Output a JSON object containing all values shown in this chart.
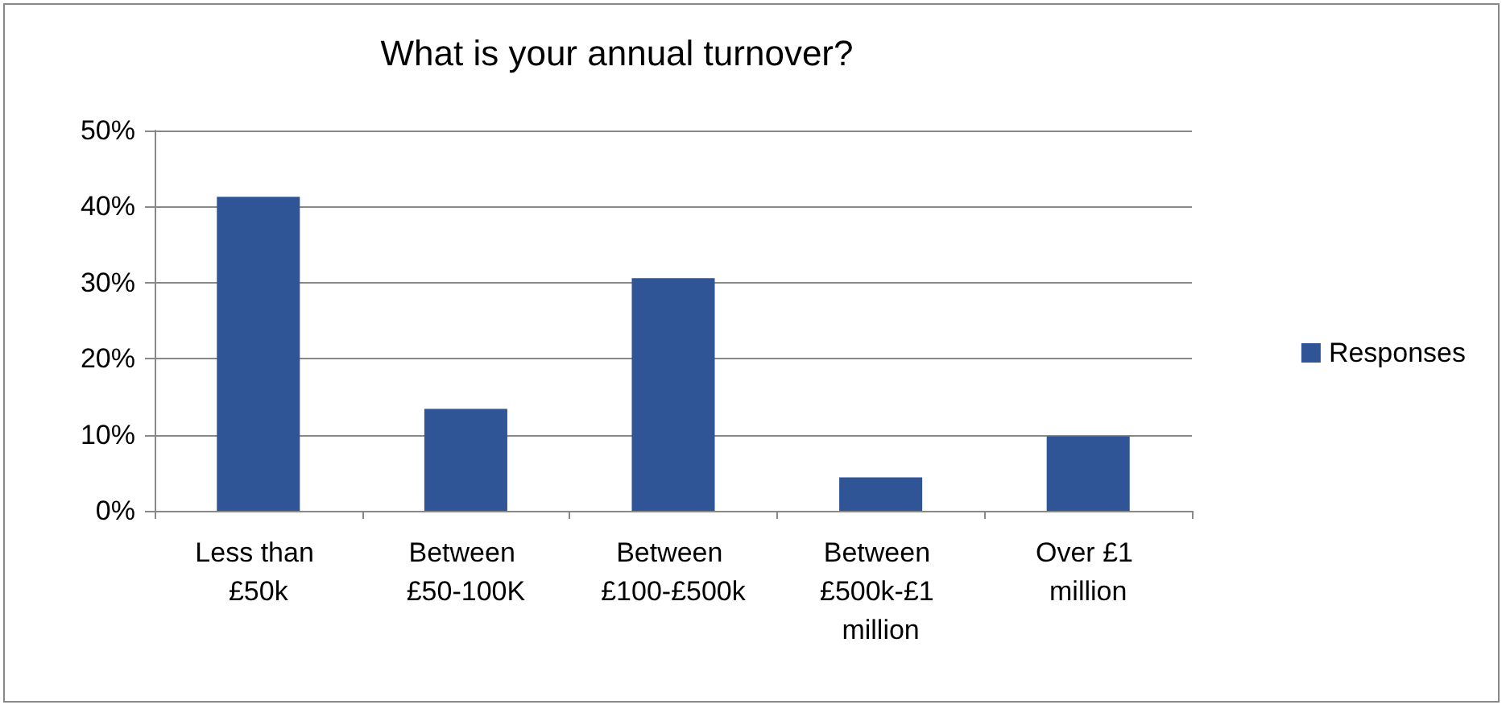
{
  "chart_data": {
    "type": "bar",
    "title": "What is your annual turnover?",
    "categories": [
      "Less than £50k",
      "Between £50-100K",
      "Between £100-£500k",
      "Between £500k-£1 million",
      "Over £1 million"
    ],
    "series": [
      {
        "name": "Responses",
        "color": "#2f5597",
        "values": [
          41.3,
          13.4,
          30.6,
          4.4,
          9.8
        ]
      }
    ],
    "ylim": [
      0,
      50
    ],
    "yticks": [
      {
        "value": 0,
        "label": "0%"
      },
      {
        "value": 10,
        "label": "10%"
      },
      {
        "value": 20,
        "label": "20%"
      },
      {
        "value": 30,
        "label": "30%"
      },
      {
        "value": 40,
        "label": "40%"
      },
      {
        "value": 50,
        "label": "50%"
      }
    ],
    "grid": "y",
    "legend": "right"
  }
}
